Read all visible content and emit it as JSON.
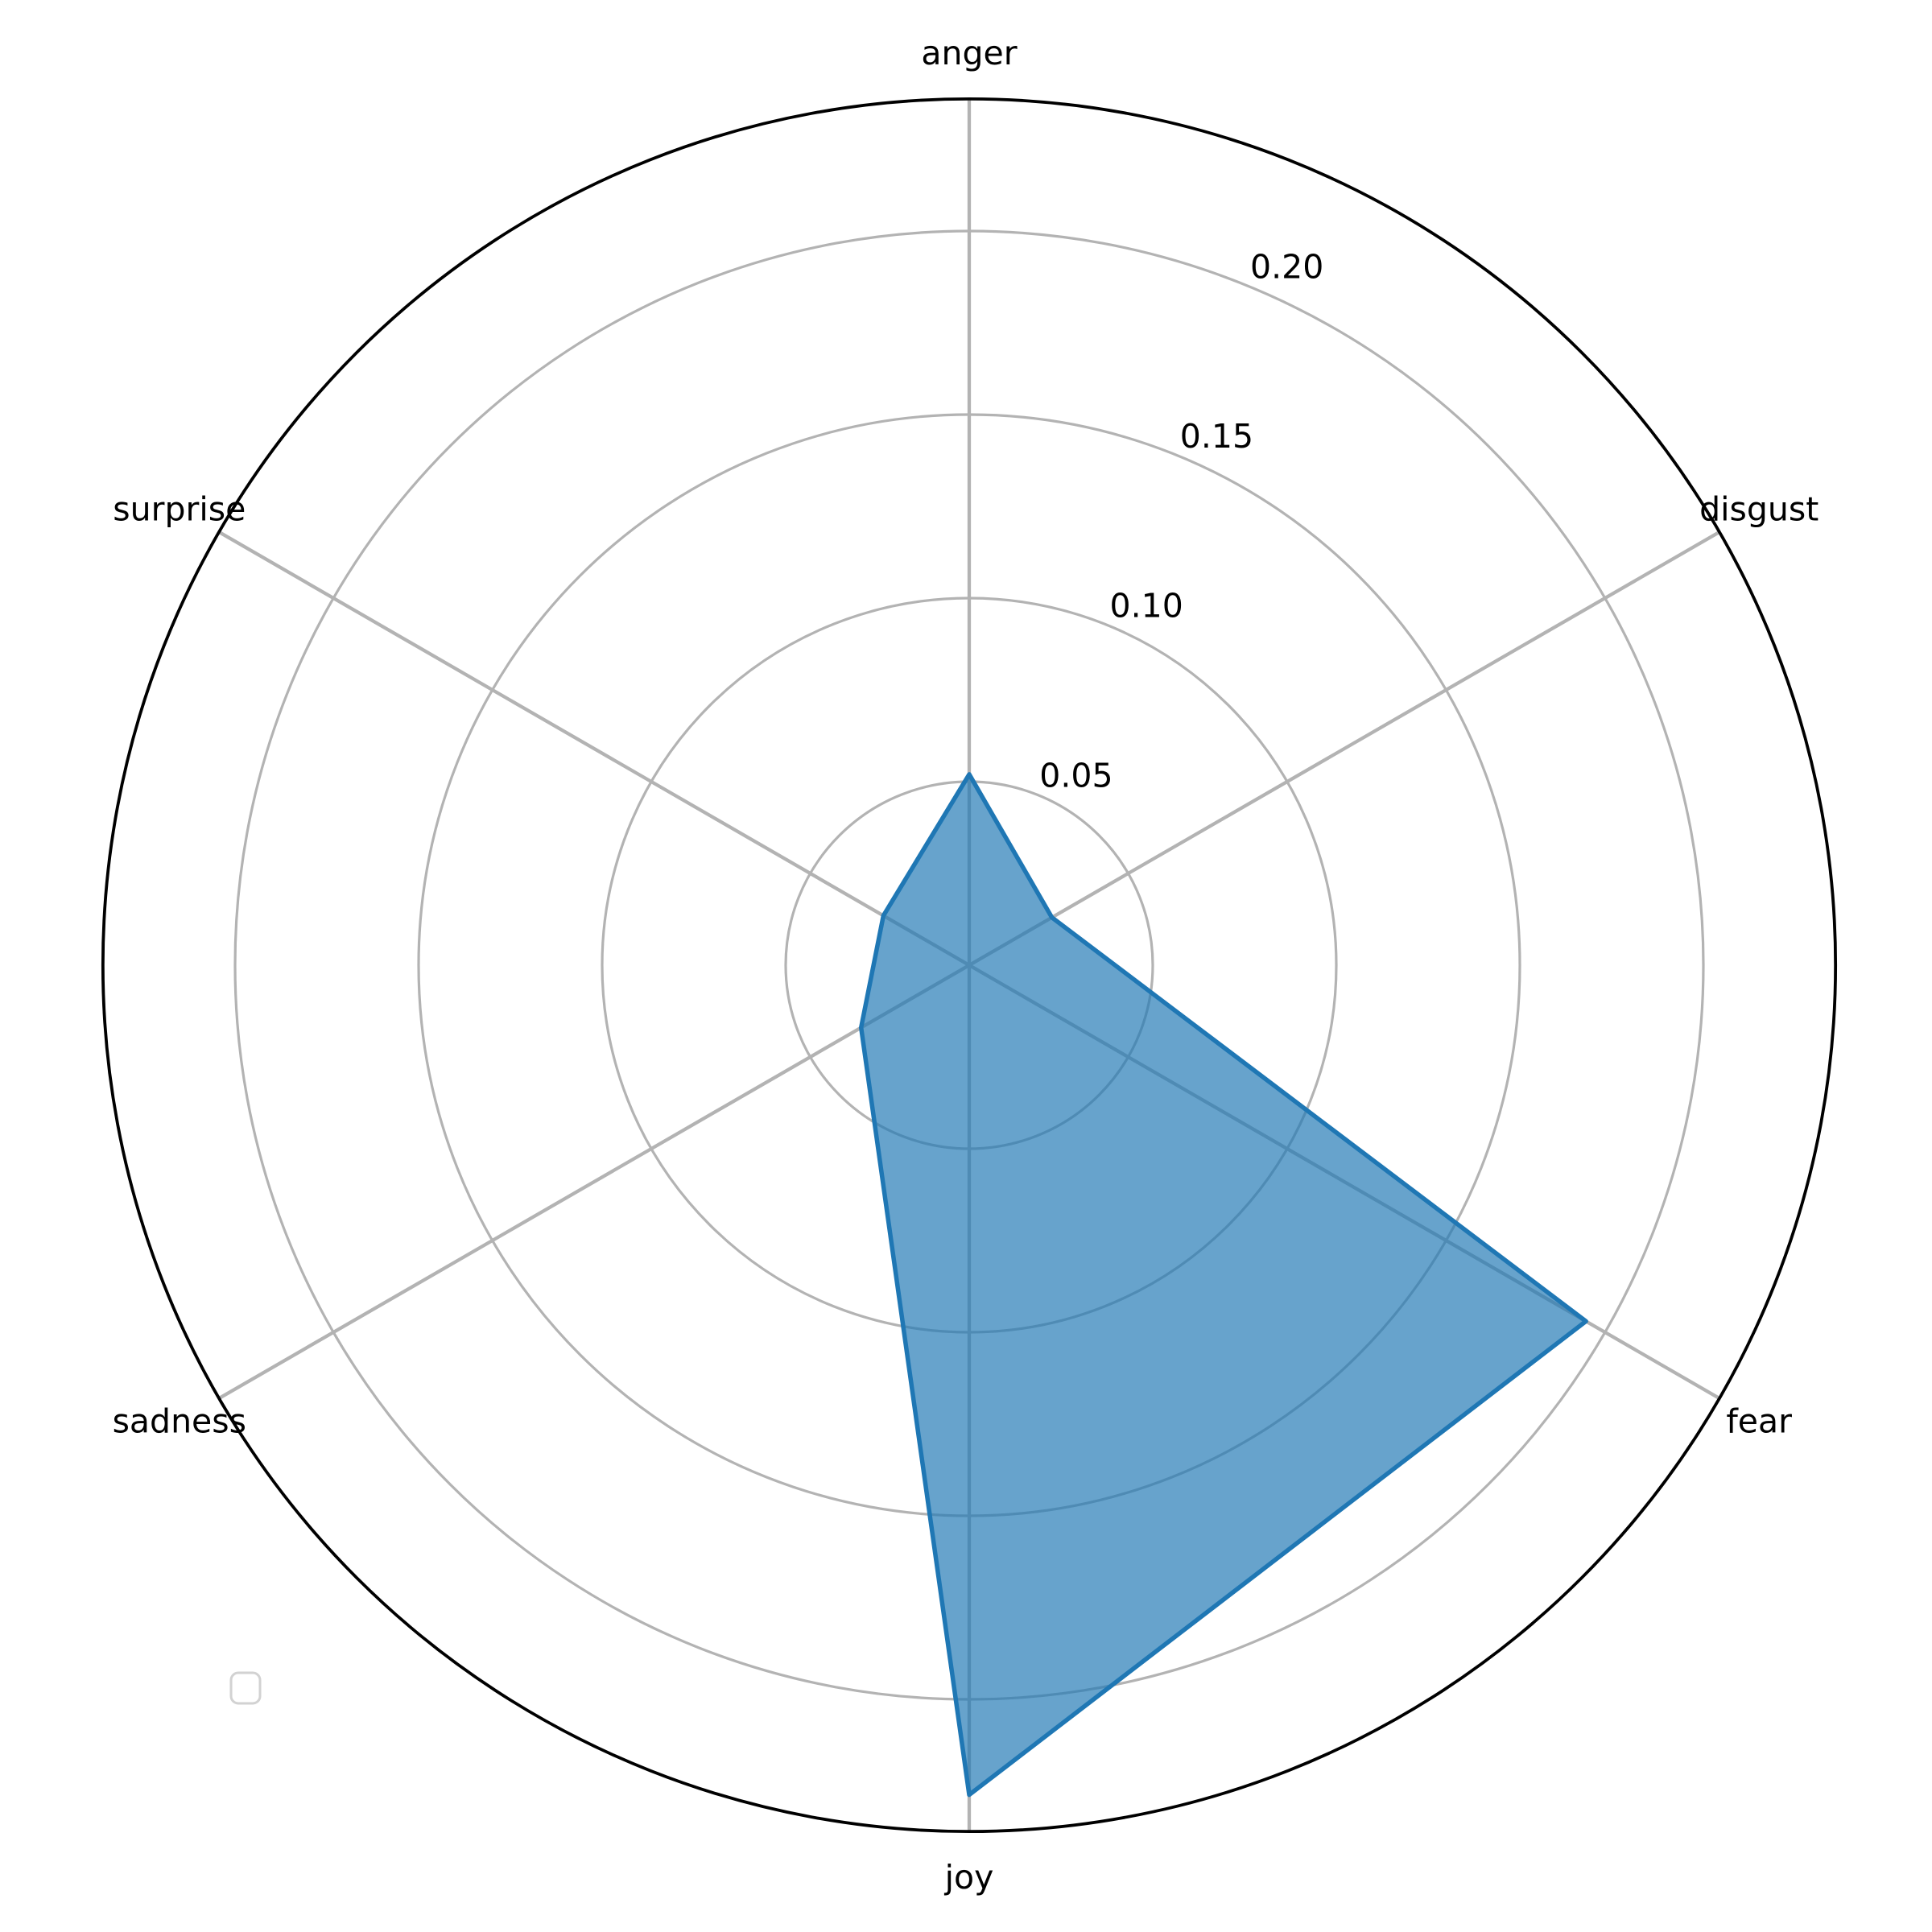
{
  "chart_data": {
    "type": "radar",
    "title": "",
    "categories": [
      "anger",
      "disgust",
      "fear",
      "joy",
      "sadness",
      "surprise"
    ],
    "series": [
      {
        "name": "",
        "values": [
          0.052,
          0.026,
          0.194,
          0.226,
          0.034,
          0.027
        ]
      }
    ],
    "radial_ticks": [
      0.05,
      0.1,
      0.15,
      0.2
    ],
    "radial_tick_labels": [
      "0.05",
      "0.10",
      "0.15",
      "0.20"
    ],
    "rmin": 0,
    "rmax": 0.236,
    "start_angle_deg": 90,
    "direction": "clockwise",
    "num_axes": 6,
    "grid": true,
    "legend": {
      "visible": true,
      "entries": [],
      "position": "lower-left"
    },
    "colors": {
      "series_fill": "#1f77b4",
      "series_fill_opacity": 0.68,
      "series_stroke": "#1f77b4",
      "grid": "#b3b3b3",
      "outline": "#000000",
      "text": "#000000",
      "background": "#ffffff",
      "legend_border": "#d2d2d2"
    }
  }
}
